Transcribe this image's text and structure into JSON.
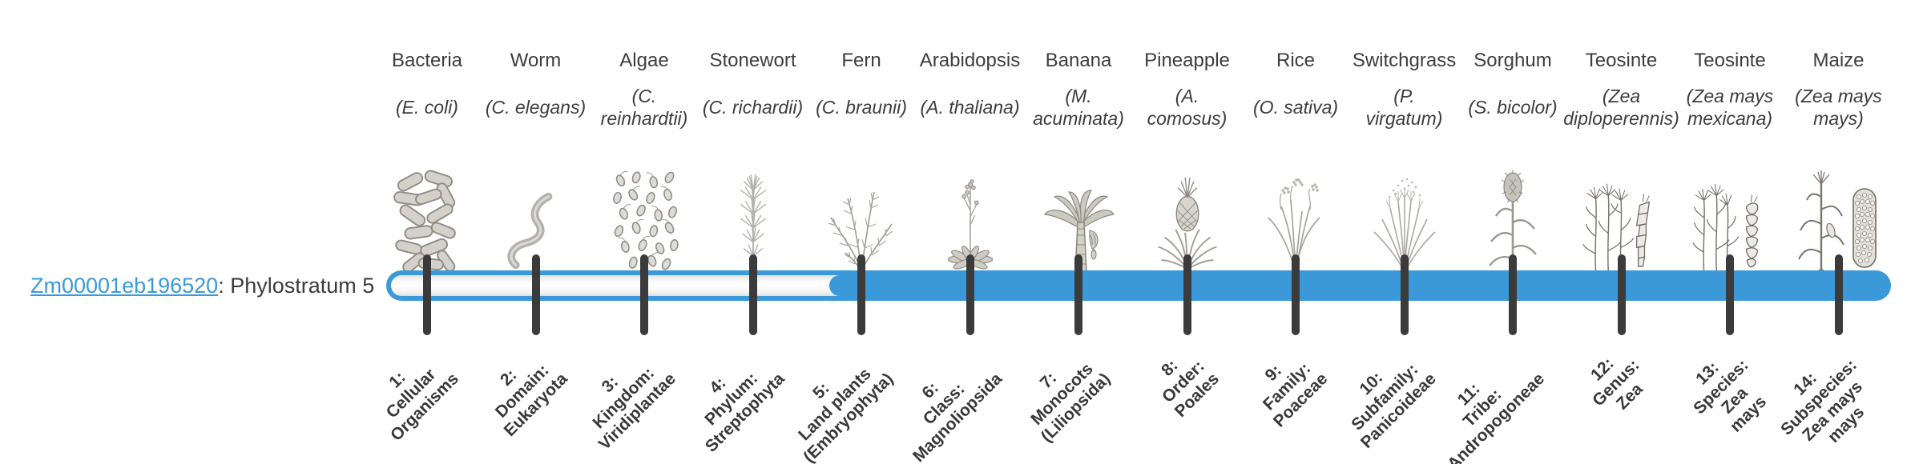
{
  "gene": {
    "id": "Zm00001eb196520",
    "suffix": ": Phylostratum 5",
    "phylostratum": 5
  },
  "bar": {
    "total_strata": 14,
    "filled_from_stratum": 5,
    "filled_to_stratum": 14,
    "unfilled_strata": [
      1,
      2,
      3,
      4
    ],
    "fill_color": "#3b99da",
    "track_color": "#ffffff",
    "tick_color": "#3b3b3b"
  },
  "organisms": [
    {
      "name": "Bacteria",
      "sci": "(E. coli)",
      "icon": "bacteria",
      "stratum_label": "1:\nCellular\nOrganisms"
    },
    {
      "name": "Worm",
      "sci": "(C. elegans)",
      "icon": "worm",
      "stratum_label": "2:\nDomain:\nEukaryota"
    },
    {
      "name": "Algae",
      "sci": "(C.\nreinhardtii)",
      "icon": "algae",
      "stratum_label": "3:\nKingdom:\nViridiplantae"
    },
    {
      "name": "Stonewort",
      "sci": "(C. richardii)",
      "icon": "stonewort",
      "stratum_label": "4:\nPhylum:\nStreptophyta"
    },
    {
      "name": "Fern",
      "sci": "(C. braunii)",
      "icon": "fern",
      "stratum_label": "5:\nLand plants\n(Embryophyta)"
    },
    {
      "name": "Arabidopsis",
      "sci": "(A. thaliana)",
      "icon": "arabidopsis",
      "stratum_label": "6:\nClass:\nMagnoliopsida"
    },
    {
      "name": "Banana",
      "sci": "(M.\nacuminata)",
      "icon": "banana",
      "stratum_label": "7:\nMonocots\n(Liliopsida)"
    },
    {
      "name": "Pineapple",
      "sci": "(A.\ncomosus)",
      "icon": "pineapple",
      "stratum_label": "8:\nOrder:\nPoales"
    },
    {
      "name": "Rice",
      "sci": "(O. sativa)",
      "icon": "rice",
      "stratum_label": "9:\nFamily:\nPoaceae"
    },
    {
      "name": "Switchgrass",
      "sci": "(P.\nvirgatum)",
      "icon": "switchgrass",
      "stratum_label": "10:\nSubfamily:\nPanicoideae"
    },
    {
      "name": "Sorghum",
      "sci": "(S. bicolor)",
      "icon": "sorghum",
      "stratum_label": "11:\nTribe:\nAndropogoneae"
    },
    {
      "name": "Teosinte",
      "sci": "(Zea\ndiploperennis)",
      "icon": "teosinte1",
      "stratum_label": "12:\nGenus:\nZea"
    },
    {
      "name": "Teosinte",
      "sci": "(Zea mays\nmexicana)",
      "icon": "teosinte2",
      "stratum_label": "13:\nSpecies:\nZea\nmays"
    },
    {
      "name": "Maize",
      "sci": "(Zea mays\nmays)",
      "icon": "maize",
      "stratum_label": "14:\nSubspecies:\nZea mays\nmays"
    }
  ]
}
